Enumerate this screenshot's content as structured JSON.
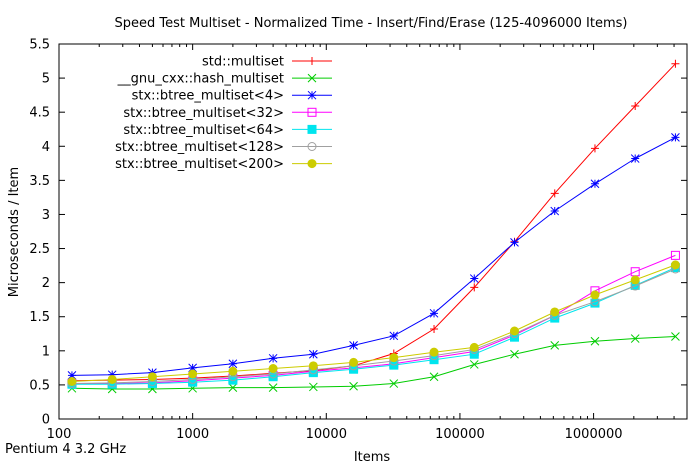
{
  "chart_data": {
    "type": "line",
    "title": "Speed Test Multiset - Normalized Time - Insert/Find/Erase (125-4096000 Items)",
    "xlabel": "Items",
    "ylabel": "Microseconds / Item",
    "footnote": "Pentium 4 3.2 GHz",
    "x_scale": "log",
    "xlim": [
      100,
      5000000
    ],
    "ylim": [
      0,
      5.5
    ],
    "x_ticks": [
      100,
      1000,
      10000,
      100000,
      1000000
    ],
    "x_tick_labels": [
      "100",
      "1000",
      "10000",
      "100000",
      "1000000"
    ],
    "y_ticks": [
      0,
      0.5,
      1,
      1.5,
      2,
      2.5,
      3,
      3.5,
      4,
      4.5,
      5,
      5.5
    ],
    "y_tick_labels": [
      "0",
      "0.5",
      "1",
      "1.5",
      "2",
      "2.5",
      "3",
      "3.5",
      "4",
      "4.5",
      "5",
      "5.5"
    ],
    "grid": false,
    "legend_position": "top-left",
    "x": [
      125,
      250,
      500,
      1000,
      2000,
      4000,
      8000,
      16000,
      32000,
      64000,
      128000,
      256000,
      512000,
      1024000,
      2048000,
      4096000
    ],
    "series": [
      {
        "name": "std::multiset",
        "color": "#ff0000",
        "marker": "plus",
        "values": [
          0.56,
          0.57,
          0.58,
          0.6,
          0.63,
          0.67,
          0.71,
          0.78,
          0.96,
          1.32,
          1.93,
          2.6,
          3.31,
          3.97,
          4.59,
          5.21
        ]
      },
      {
        "name": "__gnu_cxx::hash_multiset",
        "color": "#00cc00",
        "marker": "cross",
        "values": [
          0.45,
          0.44,
          0.44,
          0.45,
          0.46,
          0.46,
          0.47,
          0.48,
          0.52,
          0.62,
          0.8,
          0.95,
          1.08,
          1.14,
          1.18,
          1.21
        ]
      },
      {
        "name": "stx::btree_multiset<4>",
        "color": "#0000ff",
        "marker": "star",
        "values": [
          0.64,
          0.65,
          0.68,
          0.75,
          0.81,
          0.89,
          0.95,
          1.08,
          1.22,
          1.55,
          2.06,
          2.59,
          3.05,
          3.45,
          3.82,
          4.13
        ]
      },
      {
        "name": "stx::btree_multiset<32>",
        "color": "#ff00ff",
        "marker": "square-open",
        "values": [
          0.52,
          0.52,
          0.53,
          0.56,
          0.6,
          0.64,
          0.7,
          0.75,
          0.81,
          0.9,
          0.99,
          1.23,
          1.52,
          1.88,
          2.16,
          2.4
        ]
      },
      {
        "name": "stx::btree_multiset<64>",
        "color": "#00e5ee",
        "marker": "square-filled",
        "values": [
          0.51,
          0.51,
          0.52,
          0.54,
          0.57,
          0.62,
          0.68,
          0.73,
          0.79,
          0.87,
          0.95,
          1.2,
          1.48,
          1.7,
          1.96,
          2.22
        ]
      },
      {
        "name": "stx::btree_multiset<128>",
        "color": "#a0a0a0",
        "marker": "circle-open",
        "values": [
          0.52,
          0.53,
          0.55,
          0.58,
          0.62,
          0.66,
          0.72,
          0.78,
          0.85,
          0.93,
          1.02,
          1.25,
          1.52,
          1.72,
          1.95,
          2.2
        ]
      },
      {
        "name": "stx::btree_multiset<200>",
        "color": "#cccc00",
        "marker": "circle-filled",
        "values": [
          0.55,
          0.58,
          0.62,
          0.66,
          0.7,
          0.74,
          0.78,
          0.83,
          0.9,
          0.98,
          1.05,
          1.29,
          1.57,
          1.82,
          2.04,
          2.26
        ]
      }
    ]
  }
}
